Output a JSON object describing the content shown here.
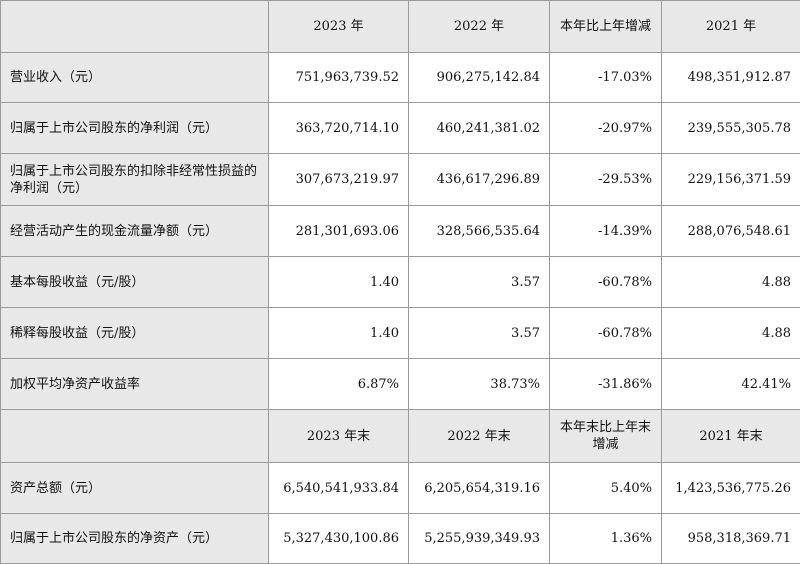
{
  "header1": [
    "2023 年",
    "2022 年",
    "本年比上年增减",
    "2021 年"
  ],
  "rows1": [
    {
      "label": "营业收入（元）",
      "values": [
        "751,963,739.52",
        "906,275,142.84",
        "-17.03%",
        "498,351,912.87"
      ]
    },
    {
      "label": "归属于上市公司股东的净利润（元）",
      "values": [
        "363,720,714.10",
        "460,241,381.02",
        "-20.97%",
        "239,555,305.78"
      ]
    },
    {
      "label": "归属于上市公司股东的扣除非经常性损益的净利润（元）",
      "values": [
        "307,673,219.97",
        "436,617,296.89",
        "-29.53%",
        "229,156,371.59"
      ]
    },
    {
      "label": "经营活动产生的现金流量净额（元）",
      "values": [
        "281,301,693.06",
        "328,566,535.64",
        "-14.39%",
        "288,076,548.61"
      ]
    },
    {
      "label": "基本每股收益（元/股）",
      "values": [
        "1.40",
        "3.57",
        "-60.78%",
        "4.88"
      ]
    },
    {
      "label": "稀释每股收益（元/股）",
      "values": [
        "1.40",
        "3.57",
        "-60.78%",
        "4.88"
      ]
    },
    {
      "label": "加权平均净资产收益率",
      "values": [
        "6.87%",
        "38.73%",
        "-31.86%",
        "42.41%"
      ]
    }
  ],
  "header2": [
    "2023 年末",
    "2022 年末",
    "本年末比上年末增减",
    "2021 年末"
  ],
  "rows2": [
    {
      "label": "资产总额（元）",
      "values": [
        "6,540,541,933.84",
        "6,205,654,319.16",
        "5.40%",
        "1,423,536,775.26"
      ]
    },
    {
      "label": "归属于上市公司股东的净资产（元）",
      "values": [
        "5,327,430,100.86",
        "5,255,939,349.93",
        "1.36%",
        "958,318,369.71"
      ]
    }
  ]
}
